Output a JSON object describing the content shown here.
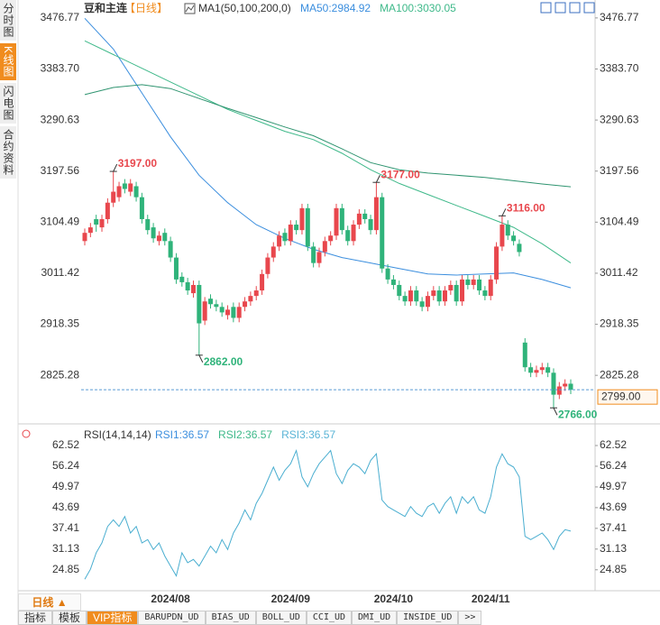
{
  "ui": {
    "sidebar": [
      "分时图",
      "K线图",
      "闪电图",
      "合约资料"
    ],
    "period": "日线 ▲",
    "toolbar": [
      "指标",
      "模板",
      "VIP指标",
      "BARUPDN_UD",
      "BIAS_UD",
      "BOLL_UD",
      "CCI_UD",
      "DMI_UD",
      "INSIDE_UD",
      ">>"
    ]
  },
  "chart_data": [
    {
      "type": "candlestick",
      "title": "豆和主连",
      "period": "【日线】",
      "indicator": "MA1(50,100,200,0)",
      "up_color": "#e8474d",
      "down_color": "#2fb37a",
      "ylim": [
        2745,
        3493
      ],
      "yticks": [
        3476.77,
        {
          "value": 3383.7,
          "label": "3383.70"
        },
        3290.63,
        3197.56,
        3104.49,
        3011.42,
        2918.35,
        2825.28
      ],
      "open": [
        3070,
        3085,
        3110,
        3095,
        3110,
        3140,
        3150,
        3175,
        3160,
        3170,
        3150,
        3110,
        3095,
        3070,
        3085,
        3070,
        3040,
        3005,
        2995,
        2975,
        2990,
        2925,
        2965,
        2955,
        2950,
        2935,
        2950,
        2930,
        2950,
        2960,
        2970,
        2980,
        3010,
        3040,
        3060,
        3085,
        3070,
        3100,
        3090,
        3130,
        3060,
        3030,
        3050,
        3070,
        3080,
        3130,
        3090,
        3070,
        3100,
        3120,
        3110,
        3090,
        3150,
        3020,
        3000,
        2990,
        2970,
        2960,
        2980,
        2960,
        2950,
        2970,
        2980,
        2960,
        2980,
        2990,
        2960,
        3000,
        2990,
        3000,
        2980,
        2970,
        3000,
        3060,
        3100,
        3080,
        3065,
        2885,
        2840,
        2830,
        2835,
        2840,
        2830,
        2790,
        2805,
        2810
      ],
      "high": [
        3093,
        3103,
        3118,
        3118,
        3148,
        3197,
        3178,
        3183,
        3183,
        3178,
        3158,
        3118,
        3103,
        3088,
        3093,
        3078,
        3048,
        3013,
        3003,
        2998,
        2998,
        2968,
        2973,
        2963,
        2958,
        2953,
        2958,
        2958,
        2968,
        2978,
        2988,
        3018,
        3048,
        3068,
        3088,
        3093,
        3108,
        3108,
        3138,
        3138,
        3068,
        3058,
        3078,
        3088,
        3138,
        3138,
        3098,
        3108,
        3128,
        3128,
        3118,
        3177,
        3158,
        3028,
        3008,
        2998,
        2978,
        2988,
        2988,
        2968,
        2978,
        2988,
        2988,
        2988,
        2998,
        2998,
        3008,
        3008,
        3008,
        3008,
        2988,
        3008,
        3068,
        3116,
        3108,
        3088,
        3073,
        2893,
        2848,
        2843,
        2848,
        2848,
        2838,
        2813,
        2818,
        2818
      ],
      "low": [
        3062,
        3077,
        3087,
        3087,
        3102,
        3132,
        3142,
        3157,
        3152,
        3142,
        3102,
        3082,
        3067,
        3062,
        3062,
        3032,
        2992,
        2987,
        2972,
        2967,
        2862,
        2917,
        2947,
        2942,
        2932,
        2927,
        2922,
        2922,
        2942,
        2952,
        2962,
        2972,
        3002,
        3032,
        3052,
        3062,
        3062,
        3082,
        3082,
        3052,
        3022,
        3022,
        3042,
        3062,
        3072,
        3082,
        3062,
        3062,
        3092,
        3102,
        3082,
        3082,
        3012,
        2992,
        2982,
        2962,
        2952,
        2952,
        2952,
        2942,
        2942,
        2962,
        2952,
        2952,
        2972,
        2952,
        2952,
        2982,
        2982,
        2972,
        2962,
        2962,
        2992,
        3052,
        3072,
        3062,
        3042,
        2832,
        2822,
        2822,
        2827,
        2822,
        2766,
        2782,
        2797,
        2791
      ],
      "close": [
        3085,
        3095,
        3100,
        3110,
        3140,
        3160,
        3170,
        3165,
        3175,
        3150,
        3110,
        3090,
        3075,
        3080,
        3070,
        3040,
        3000,
        2995,
        2980,
        2990,
        2920,
        2960,
        2955,
        2950,
        2940,
        2945,
        2930,
        2950,
        2960,
        2970,
        2980,
        3010,
        3040,
        3060,
        3080,
        3070,
        3100,
        3090,
        3130,
        3060,
        3030,
        3050,
        3070,
        3080,
        3130,
        3090,
        3070,
        3100,
        3120,
        3110,
        3090,
        3150,
        3020,
        3000,
        2990,
        2970,
        2960,
        2980,
        2960,
        2950,
        2970,
        2980,
        2960,
        2980,
        2990,
        2960,
        3000,
        2990,
        3000,
        2980,
        2970,
        3000,
        3060,
        3100,
        3080,
        3070,
        3050,
        2840,
        2830,
        2835,
        2840,
        2830,
        2790,
        2805,
        2810,
        2799
      ],
      "lines": [
        {
          "label": "MA50:2984.92",
          "color": "#3b8ede",
          "x": [
            0,
            5,
            10,
            15,
            20,
            25,
            30,
            35,
            40,
            45,
            50,
            55,
            60,
            65,
            70,
            75,
            80,
            85
          ],
          "values": [
            3476,
            3420,
            3340,
            3260,
            3190,
            3140,
            3100,
            3075,
            3055,
            3040,
            3030,
            3020,
            3010,
            3008,
            3010,
            3012,
            3000,
            2984.92
          ]
        },
        {
          "label": "MA100:3030.05",
          "color": "#3fb98a",
          "x": [
            0,
            5,
            10,
            15,
            20,
            25,
            30,
            35,
            40,
            45,
            50,
            55,
            60,
            65,
            70,
            75,
            80,
            85
          ],
          "values": [
            3435,
            3410,
            3385,
            3360,
            3335,
            3310,
            3290,
            3270,
            3255,
            3230,
            3200,
            3175,
            3155,
            3135,
            3115,
            3095,
            3065,
            3030.05
          ]
        },
        {
          "color": "#2f9470",
          "x": [
            0,
            5,
            10,
            15,
            20,
            25,
            30,
            35,
            40,
            45,
            50,
            55,
            60,
            65,
            70,
            75,
            80,
            85
          ],
          "values": [
            3337,
            3350,
            3355,
            3348,
            3330,
            3312,
            3295,
            3278,
            3262,
            3238,
            3213,
            3200,
            3194,
            3190,
            3186,
            3180,
            3174,
            3169
          ]
        }
      ],
      "annotations": [
        {
          "label": "3197.00",
          "value": 3197
        },
        {
          "label": "3177.00",
          "value": 3177
        },
        {
          "label": "3116.00",
          "value": 3116
        },
        {
          "label": "2862.00",
          "value": 2862
        },
        {
          "label": "2766.00",
          "value": 2766
        }
      ],
      "last": {
        "value": 2799,
        "label": "2799.00"
      }
    },
    {
      "type": "line",
      "title": "RSI(14,14,14)",
      "ylim": [
        18.5,
        66.9
      ],
      "yticks": [
        62.52,
        56.24,
        49.97,
        43.69,
        37.41,
        31.13,
        24.85
      ],
      "categories": [
        null,
        null,
        null,
        null,
        null,
        null,
        null,
        null,
        null,
        null,
        null,
        null,
        null,
        null,
        null,
        "2024/08",
        null,
        null,
        null,
        null,
        null,
        null,
        null,
        null,
        null,
        null,
        null,
        null,
        null,
        null,
        null,
        null,
        null,
        null,
        null,
        null,
        "2024/09",
        null,
        null,
        null,
        null,
        null,
        null,
        null,
        null,
        null,
        null,
        null,
        null,
        null,
        null,
        null,
        null,
        null,
        "2024/10",
        null,
        null,
        null,
        null,
        null,
        null,
        null,
        null,
        null,
        null,
        null,
        null,
        null,
        null,
        null,
        null,
        "2024/11",
        null,
        null,
        null,
        null,
        null,
        null,
        null,
        null,
        null,
        null,
        null,
        null,
        null,
        null
      ],
      "series": [
        {
          "label": "RSI1:36.57",
          "color": "#3b8ede",
          "line_color": "#4aaed0",
          "values": [
            22,
            25,
            30,
            33,
            38,
            40,
            38,
            41,
            36,
            38,
            33,
            34,
            31,
            33,
            29,
            26,
            23,
            30,
            27,
            28,
            26,
            29,
            32,
            30,
            34,
            31,
            36,
            39,
            43,
            40,
            45,
            48,
            52,
            56,
            52,
            55,
            57,
            61,
            53,
            50,
            54,
            57,
            59,
            61,
            54,
            51,
            55,
            57,
            56,
            54,
            58,
            60,
            46,
            44,
            43,
            42,
            41,
            44,
            42,
            41,
            44,
            45,
            42,
            45,
            47,
            42,
            47,
            45,
            47,
            43,
            42,
            47,
            56,
            60,
            57,
            56,
            53,
            35,
            34,
            35,
            36,
            34,
            31,
            35,
            37,
            36.57
          ]
        },
        {
          "label": "RSI2:36.57",
          "color": "#3fb98a"
        },
        {
          "label": "RSI3:36.57",
          "color": "#5ab4d6"
        }
      ]
    }
  ]
}
